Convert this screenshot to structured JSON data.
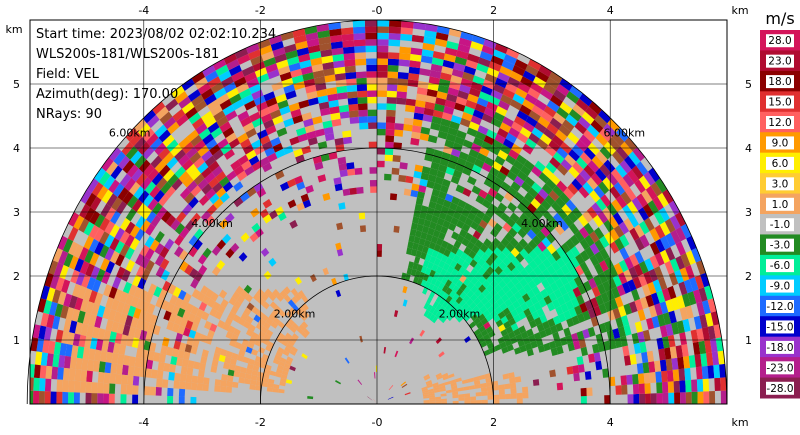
{
  "chart_data": {
    "type": "ppi-radar-velocity",
    "info_lines": [
      "Start time: 2023/08/02 02:02:10.234",
      "WLS200s-181/WLS200s-181",
      "Field: VEL",
      "Azimuth(deg): 170.00",
      "NRays: 90"
    ],
    "axis_unit": "km",
    "x_ticks": [
      -4,
      -2,
      0,
      2,
      4
    ],
    "y_ticks": [
      1,
      2,
      3,
      4,
      5
    ],
    "xlim": [
      -5.9,
      6.0
    ],
    "ylim": [
      0,
      6.0
    ],
    "max_range_km": 6.0,
    "grid": true,
    "range_rings": [
      {
        "km": 2,
        "label": "2.00km"
      },
      {
        "km": 4,
        "label": "4.00km"
      },
      {
        "km": 6,
        "label": "6.00km"
      }
    ],
    "colorbar": {
      "unit": "m/s",
      "labels": [
        "28.0",
        "23.0",
        "18.0",
        "15.0",
        "12.0",
        "9.0",
        "6.0",
        "3.0",
        "1.0",
        "-1.0",
        "-3.0",
        "-6.0",
        "-9.0",
        "-12.0",
        "-15.0",
        "-18.0",
        "-23.0",
        "-28.0"
      ],
      "colors": [
        "#d4145a",
        "#b00c30",
        "#8b0000",
        "#e03030",
        "#ff6060",
        "#ff9900",
        "#ffee00",
        "#ffcc33",
        "#f4a460",
        "#c0c0c0",
        "#228b22",
        "#00ee99",
        "#00ccff",
        "#1e6bff",
        "#0000cd",
        "#9932cc",
        "#b41e8c",
        "#8b1e50"
      ]
    }
  }
}
